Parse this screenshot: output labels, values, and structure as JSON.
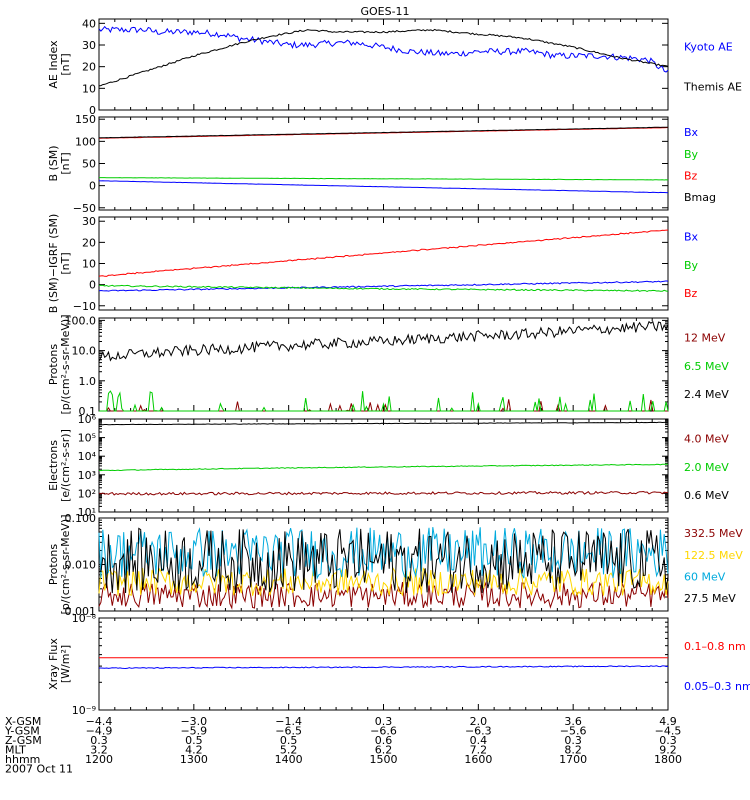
{
  "title": "GOES-11",
  "chart_data": [
    {
      "type": "line",
      "ylabel": "AE Index\n[nT]",
      "ylim": [
        0,
        42
      ],
      "scale": "linear",
      "yticks": [
        0,
        10,
        20,
        30,
        40
      ],
      "ytick_labels": [
        "0",
        "10",
        "20",
        "30",
        "40"
      ],
      "series": [
        {
          "name": "Kyoto AE",
          "color": "#0000ff",
          "noise": 1.5,
          "x": [
            0,
            0.3,
            0.5,
            0.6,
            1.0,
            1.3,
            1.5,
            1.7,
            2.0,
            2.2,
            2.5,
            2.7,
            3.0,
            3.3,
            3.6,
            3.8,
            4.0,
            4.2,
            4.5,
            4.7,
            4.8,
            5.0,
            5.3,
            5.6,
            5.8,
            6.0
          ],
          "y": [
            37,
            37,
            37,
            36,
            36,
            35,
            33,
            32,
            30,
            30,
            31,
            31,
            29,
            27,
            26,
            26,
            27,
            27,
            27,
            26,
            25,
            25,
            25,
            24,
            23,
            17
          ]
        },
        {
          "name": "Themis AE",
          "color": "#000000",
          "noise": 0.4,
          "x": [
            0,
            0.5,
            1.0,
            1.5,
            1.8,
            2.2,
            2.5,
            3.0,
            3.5,
            4.0,
            4.3,
            4.5,
            5.0,
            5.5,
            6.0
          ],
          "y": [
            11,
            18,
            25,
            31,
            34,
            37,
            36,
            36,
            37,
            35,
            34,
            33,
            29,
            24,
            20
          ]
        }
      ]
    },
    {
      "type": "line",
      "ylabel": "B (SM)\n[nT]",
      "ylim": [
        -55,
        155
      ],
      "scale": "linear",
      "yticks": [
        -50,
        0,
        50,
        100,
        150
      ],
      "ytick_labels": [
        "−50",
        "0",
        "50",
        "100",
        "150"
      ],
      "series": [
        {
          "name": "Bx",
          "color": "#0000ff",
          "noise": 0.3,
          "x": [
            0,
            6
          ],
          "y": [
            11,
            -16
          ]
        },
        {
          "name": "By",
          "color": "#00cc00",
          "noise": 0.3,
          "x": [
            0,
            6
          ],
          "y": [
            18,
            13
          ]
        },
        {
          "name": "Bz",
          "color": "#ff0000",
          "noise": 0.3,
          "x": [
            0,
            6
          ],
          "y": [
            107,
            131
          ]
        },
        {
          "name": "Bmag",
          "color": "#000000",
          "noise": 0.3,
          "x": [
            0,
            6
          ],
          "y": [
            108,
            132
          ]
        }
      ]
    },
    {
      "type": "line",
      "ylabel": "B (SM)−IGRF (SM)\n[nT]",
      "ylim": [
        -12,
        32
      ],
      "scale": "linear",
      "yticks": [
        -10,
        0,
        10,
        20,
        30
      ],
      "ytick_labels": [
        "−10",
        "0",
        "10",
        "20",
        "30"
      ],
      "series": [
        {
          "name": "Bx",
          "color": "#0000ff",
          "noise": 0.3,
          "x": [
            0,
            6
          ],
          "y": [
            -3,
            1.5
          ]
        },
        {
          "name": "By",
          "color": "#00cc00",
          "noise": 0.3,
          "x": [
            0,
            3,
            6
          ],
          "y": [
            -0.5,
            -2,
            -3
          ]
        },
        {
          "name": "Bz",
          "color": "#ff0000",
          "noise": 0.2,
          "step": true,
          "x": [
            0,
            0.5,
            6
          ],
          "y": [
            4,
            6,
            26
          ]
        }
      ]
    },
    {
      "type": "line",
      "ylabel": "Protons\n[p/(cm²-s-sr-MeV)]",
      "ylim": [
        0.1,
        120
      ],
      "scale": "log",
      "yticks": [
        0.1,
        1.0,
        10.0,
        100.0
      ],
      "ytick_labels": [
        "0.1",
        "1.0",
        "10.0",
        "100.0"
      ],
      "series": [
        {
          "name": "12 MeV",
          "color": "#8b0000",
          "spikes": 0.07,
          "spike_max": 0.25,
          "x": [
            0,
            6
          ],
          "y": [
            0.1,
            0.1
          ]
        },
        {
          "name": "6.5 MeV",
          "color": "#00cc00",
          "spikes": 0.12,
          "spike_max": 0.5,
          "x": [
            0,
            6
          ],
          "y": [
            0.1,
            0.1
          ]
        },
        {
          "name": "2.4 MeV",
          "color": "#000000",
          "lognoise": 0.18,
          "x": [
            0,
            1.5,
            3.0,
            4.5,
            6.0
          ],
          "y": [
            6,
            12,
            20,
            35,
            65
          ]
        }
      ]
    },
    {
      "type": "line",
      "ylabel": "Electrons\n[e/(cm²-s-sr)]",
      "ylim": [
        10,
        1000000
      ],
      "scale": "log",
      "yticks": [
        10,
        100,
        1000,
        10000,
        100000,
        1000000
      ],
      "ytick_labels": [
        "10¹",
        "10²",
        "10³",
        "10⁴",
        "10⁵",
        "10⁶"
      ],
      "series": [
        {
          "name": "4.0 MeV",
          "color": "#8b0000",
          "lognoise": 0.07,
          "x": [
            0,
            6
          ],
          "y": [
            95,
            110
          ]
        },
        {
          "name": "2.0 MeV",
          "color": "#00cc00",
          "lognoise": 0.02,
          "x": [
            0,
            6
          ],
          "y": [
            1700,
            3600
          ]
        },
        {
          "name": "0.6 MeV",
          "color": "#000000",
          "lognoise": 0.01,
          "x": [
            0,
            6
          ],
          "y": [
            500000,
            650000
          ]
        }
      ]
    },
    {
      "type": "line",
      "ylabel": "Protons\n[p/(cm²-s-sr-MeV)]",
      "ylim": [
        0.001,
        0.1
      ],
      "scale": "log",
      "yticks": [
        0.001,
        0.01,
        0.1
      ],
      "ytick_labels": [
        "0.001",
        "0.010",
        "0.100"
      ],
      "series": [
        {
          "name": "332.5 MeV",
          "color": "#8b0000",
          "lognoise": 0.28,
          "x": [
            0,
            6
          ],
          "y": [
            0.0022,
            0.0022
          ]
        },
        {
          "name": "122.5 MeV",
          "color": "#ffd700",
          "lognoise": 0.3,
          "x": [
            0,
            6
          ],
          "y": [
            0.0042,
            0.0042
          ]
        },
        {
          "name": "60 MeV",
          "color": "#00aadd",
          "lognoise": 0.55,
          "x": [
            0,
            6
          ],
          "y": [
            0.018,
            0.018
          ]
        },
        {
          "name": "27.5 MeV",
          "color": "#000000",
          "lognoise": 0.7,
          "x": [
            0,
            6
          ],
          "y": [
            0.012,
            0.012
          ]
        }
      ]
    },
    {
      "type": "line",
      "ylabel": "Xray Flux\n[W/m²]",
      "ylim": [
        1e-09,
        1e-08
      ],
      "scale": "log",
      "yticks": [
        1e-09,
        1e-08
      ],
      "ytick_labels": [
        "10⁻⁹",
        "10⁻⁸"
      ],
      "series": [
        {
          "name": "0.1–0.8 nm",
          "color": "#ff0000",
          "noise": 0,
          "x": [
            0,
            6
          ],
          "y": [
            3.7e-09,
            3.7e-09
          ]
        },
        {
          "name": "0.05–0.3 nm",
          "color": "#0000ff",
          "lognoise": 0.005,
          "x": [
            0,
            6
          ],
          "y": [
            2.85e-09,
            3e-09
          ]
        }
      ]
    }
  ],
  "legends": [
    [
      {
        "text": "Kyoto AE",
        "color": "#0000ff"
      },
      {
        "text": "Themis AE",
        "color": "#000000"
      }
    ],
    [
      {
        "text": "Bx",
        "color": "#0000ff"
      },
      {
        "text": "By",
        "color": "#00cc00"
      },
      {
        "text": "Bz",
        "color": "#ff0000"
      },
      {
        "text": "Bmag",
        "color": "#000000"
      }
    ],
    [
      {
        "text": "Bx",
        "color": "#0000ff"
      },
      {
        "text": "By",
        "color": "#00cc00"
      },
      {
        "text": "Bz",
        "color": "#ff0000"
      }
    ],
    [
      {
        "text": "12 MeV",
        "color": "#8b0000"
      },
      {
        "text": "6.5 MeV",
        "color": "#00cc00"
      },
      {
        "text": "2.4 MeV",
        "color": "#000000"
      }
    ],
    [
      {
        "text": "4.0 MeV",
        "color": "#8b0000"
      },
      {
        "text": "2.0 MeV",
        "color": "#00cc00"
      },
      {
        "text": "0.6 MeV",
        "color": "#000000"
      }
    ],
    [
      {
        "text": "332.5 MeV",
        "color": "#8b0000"
      },
      {
        "text": "122.5 MeV",
        "color": "#ffd700"
      },
      {
        "text": "60 MeV",
        "color": "#00aadd"
      },
      {
        "text": "27.5 MeV",
        "color": "#000000"
      }
    ],
    [
      {
        "text": "0.1–0.8 nm",
        "color": "#ff0000"
      },
      {
        "text": "0.05–0.3 nm",
        "color": "#0000ff"
      }
    ]
  ],
  "x_axis": {
    "ticks": [
      0,
      1,
      2,
      3,
      4,
      5,
      6
    ],
    "minor_per_major": 6,
    "rows": [
      {
        "label": "X-GSM",
        "values": [
          "−4.4",
          "−3.0",
          "−1.4",
          "0.3",
          "2.0",
          "3.6",
          "4.9"
        ]
      },
      {
        "label": "Y-GSM",
        "values": [
          "−4.9",
          "−5.9",
          "−6.5",
          "−6.6",
          "−6.3",
          "−5.6",
          "−4.5"
        ]
      },
      {
        "label": "Z-GSM",
        "values": [
          "0.3",
          "0.5",
          "0.5",
          "0.6",
          "0.4",
          "0.3",
          "0.3"
        ]
      },
      {
        "label": "MLT",
        "values": [
          "3.2",
          "4.2",
          "5.2",
          "6.2",
          "7.2",
          "8.2",
          "9.2"
        ]
      },
      {
        "label": "hhmm",
        "values": [
          "1200",
          "1300",
          "1400",
          "1500",
          "1600",
          "1700",
          "1800"
        ]
      }
    ],
    "date": "2007 Oct 11"
  }
}
